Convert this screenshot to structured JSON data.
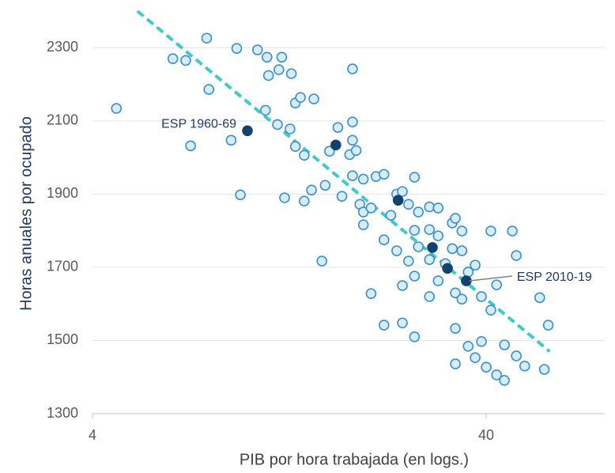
{
  "chart_data": {
    "type": "scatter",
    "xlabel": "PIB por hora trabajada (en logs.)",
    "ylabel": "Horas anuales por ocupado",
    "xscale": "log",
    "xlim": [
      4,
      80
    ],
    "ylim": [
      1300,
      2400
    ],
    "xticks": [
      4,
      40
    ],
    "yticks": [
      1300,
      1500,
      1700,
      1900,
      2100,
      2300
    ],
    "grid": true,
    "series": [
      {
        "color": "#d6ecf9",
        "edgecolor": "#3a8fce",
        "x": [
          4.6,
          6.4,
          6.9,
          7.1,
          7.8,
          7.9,
          9.0,
          9.3,
          9.5,
          10.5,
          11.0,
          11.1,
          11.2,
          11.8,
          11.9,
          12.1,
          12.3,
          12.7,
          12.8,
          13.1,
          13.1,
          13.5,
          13.8,
          13.8,
          14.4,
          14.6,
          15.3,
          15.6,
          16.0,
          16.8,
          17.2,
          18.0,
          18.3,
          18.3,
          18.3,
          18.3,
          18.7,
          19.1,
          19.5,
          19.5,
          19.5,
          20.4,
          20.4,
          21.0,
          22.0,
          22.0,
          22.0,
          22.9,
          23.7,
          23.7,
          24.5,
          24.5,
          24.5,
          25.4,
          25.4,
          26.3,
          26.3,
          26.3,
          26.3,
          26.9,
          26.9,
          28.7,
          28.7,
          28.7,
          28.7,
          30.2,
          30.2,
          30.2,
          31.5,
          32.8,
          32.8,
          33.4,
          33.4,
          33.4,
          33.4,
          34.7,
          34.7,
          34.7,
          36.0,
          36.0,
          37.5,
          37.5,
          38.9,
          38.9,
          40,
          41.1,
          41.1,
          42.5,
          42.5,
          44.5,
          44.5,
          46.6,
          47.7,
          47.7,
          50.1,
          54.7,
          56.2,
          57.5
        ],
        "y": [
          2134,
          2270,
          2265,
          2032,
          2326,
          2186,
          2047,
          2298,
          1898,
          2294,
          2129,
          2274,
          2224,
          2090,
          2240,
          2274,
          1890,
          2078,
          2229,
          2030,
          2149,
          2164,
          2006,
          1881,
          1911,
          2160,
          1717,
          1924,
          2017,
          2082,
          1894,
          2008,
          2097,
          2242,
          2047,
          1950,
          2019,
          1872,
          1941,
          1816,
          1851,
          1862,
          1628,
          1948,
          1954,
          1542,
          1775,
          1842,
          1900,
          1745,
          1907,
          1548,
          1650,
          1872,
          1717,
          1946,
          1801,
          1510,
          1676,
          1851,
          1756,
          1865,
          1620,
          1803,
          1721,
          1862,
          1786,
          1663,
          1710,
          1821,
          1751,
          1834,
          1533,
          1436,
          1630,
          1799,
          1745,
          1613,
          1484,
          1687,
          1453,
          1706,
          1497,
          1620,
          1427,
          1799,
          1583,
          1406,
          1652,
          1488,
          1391,
          1799,
          1732,
          1458,
          1430,
          1617,
          1421,
          1542
        ]
      },
      {
        "color": "#13426e",
        "edgecolor": "#13426e",
        "x": [
          9.9,
          16.6,
          23.9,
          29.2,
          31.9,
          35.6
        ],
        "y": [
          2073,
          2034,
          1883,
          1754,
          1697,
          1663
        ]
      }
    ],
    "trendline": {
      "x": [
        5.2,
        58
      ],
      "y": [
        2400,
        1470
      ],
      "color": "#3ccbc9",
      "style": "dashed"
    },
    "annotations": [
      {
        "text": "ESP 1960-69",
        "x": 9.9,
        "y": 2073
      },
      {
        "text": "ESP 2010-19",
        "x": 35.6,
        "y": 1663
      }
    ]
  }
}
